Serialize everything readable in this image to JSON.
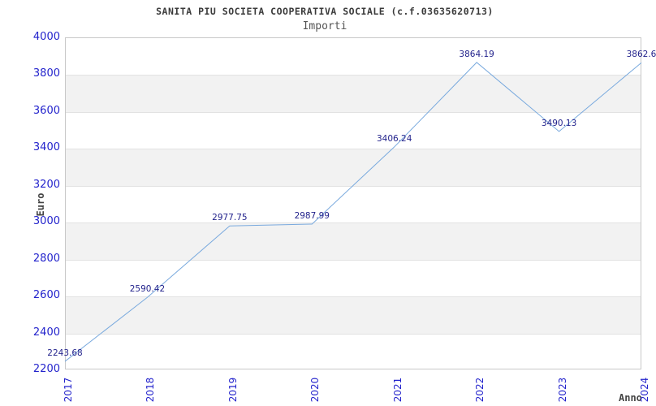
{
  "title": "SANITA PIU SOCIETA COOPERATIVA SOCIALE (c.f.03635620713)",
  "subtitle": "Importi",
  "chart_data": {
    "type": "line",
    "x": [
      2017,
      2018,
      2019,
      2020,
      2021,
      2022,
      2023,
      2024
    ],
    "values": [
      2243.68,
      2590.42,
      2977.75,
      2987.99,
      3406.24,
      3864.19,
      3490.13,
      3862.6
    ],
    "point_labels": [
      "2243.68",
      "2590.42",
      "2977.75",
      "2987.99",
      "3406.24",
      "3864.19",
      "3490.13",
      "3862.6"
    ],
    "xlabel": "Anno",
    "ylabel": "Euro",
    "ylim": [
      2200,
      4000
    ],
    "ytick_step": 200,
    "yticks": [
      2200,
      2400,
      2600,
      2800,
      3000,
      3200,
      3400,
      3600,
      3800,
      4000
    ],
    "legend": "none",
    "grid": "alternating-horizontal-bands",
    "colors": {
      "line": "#7aaade",
      "tick_label": "#2323cc",
      "value_label": "#23238c",
      "band_fill": "#f2f2f2",
      "band_line": "#e2e2e2",
      "plot_border": "#c8c8c8",
      "title_text": "#3a3a3a",
      "subtitle_text": "#555555",
      "axis_title_text": "#444444"
    }
  }
}
